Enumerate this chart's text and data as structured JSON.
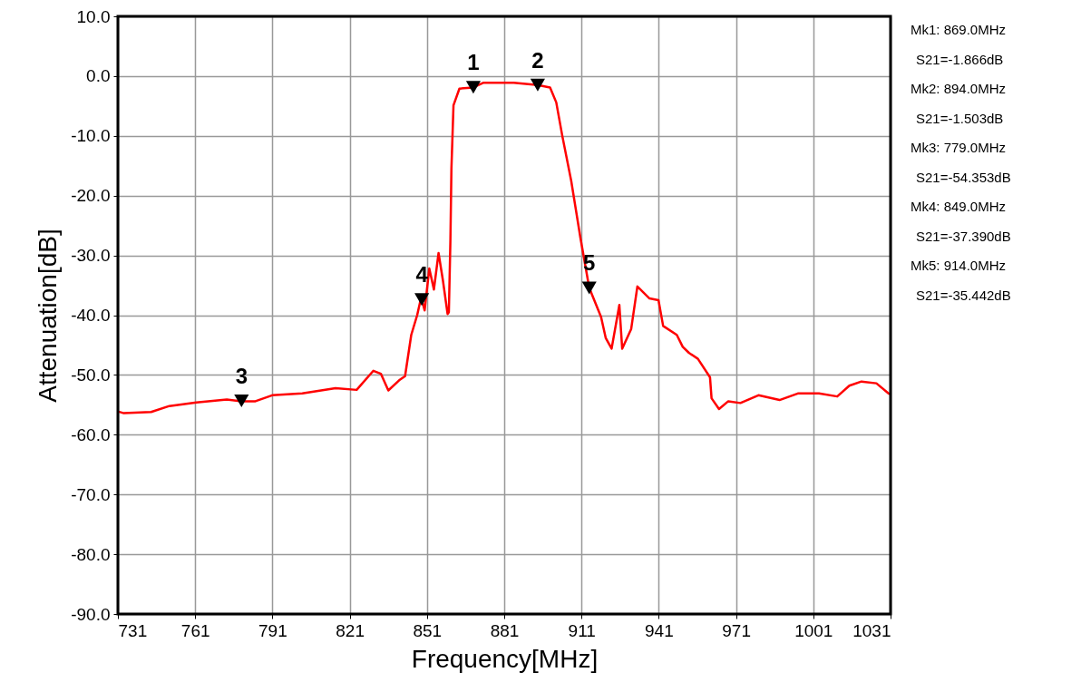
{
  "chart_data": {
    "type": "line",
    "xlabel": "Frequency[MHz]",
    "ylabel": "Attenuation[dB]",
    "x": [
      731,
      733.3,
      743.9,
      751,
      761.5,
      773.3,
      779,
      784.4,
      790.9,
      802.6,
      815.5,
      823.7,
      830.2,
      833.1,
      836,
      840.2,
      842.5,
      844.9,
      847.2,
      848.4,
      849,
      850.1,
      851.9,
      853.7,
      855.5,
      857.2,
      859,
      859.5,
      860.1,
      860.5,
      861.3,
      863.6,
      869,
      873,
      884.7,
      894,
      898.8,
      901.2,
      903.5,
      907,
      910.6,
      914,
      918.6,
      920.4,
      922.7,
      925.7,
      926.8,
      930.3,
      932.7,
      937.4,
      940.9,
      942.7,
      948,
      950.3,
      952.7,
      956.2,
      960.9,
      961.5,
      964.4,
      968,
      972.7,
      979.7,
      987.9,
      995,
      1003.2,
      1010.3,
      1015,
      1019.7,
      1025.5,
      1030.2,
      1031
    ],
    "series": [
      {
        "color": "#ff0000",
        "values": [
          -56.1,
          -56.4,
          -56.2,
          -55.2,
          -54.6,
          -54.1,
          -54.4,
          -54.4,
          -53.4,
          -53.1,
          -52.2,
          -52.5,
          -49.3,
          -49.8,
          -52.6,
          -50.9,
          -50.2,
          -43.3,
          -40,
          -37.7,
          -37.4,
          -39.2,
          -32.2,
          -35.7,
          -29.6,
          -34.2,
          -39.8,
          -39.5,
          -27.6,
          -15.5,
          -4.9,
          -2.1,
          -1.9,
          -1.1,
          -1.1,
          -1.5,
          -1.9,
          -4.4,
          -9.9,
          -17.5,
          -27.1,
          -35.4,
          -40.3,
          -43.8,
          -45.6,
          -38.3,
          -45.6,
          -42.3,
          -35.2,
          -37.2,
          -37.5,
          -41.8,
          -43.3,
          -45.3,
          -46.3,
          -47.3,
          -50.4,
          -53.9,
          -55.7,
          -54.4,
          -54.7,
          -53.4,
          -54.2,
          -53.1,
          -53.1,
          -53.6,
          -51.8,
          -51.1,
          -51.4,
          -53.1,
          -53.2
        ]
      }
    ],
    "xlim": [
      731,
      1031
    ],
    "xticks": [
      731,
      761,
      791,
      821,
      851,
      881,
      911,
      941,
      971,
      1001,
      1031
    ],
    "ylim": [
      -90,
      10
    ],
    "yticks": [
      {
        "value": -90,
        "label": "-90.0"
      },
      {
        "value": -80,
        "label": "-80.0"
      },
      {
        "value": -70,
        "label": "-70.0"
      },
      {
        "value": -60,
        "label": "-60.0"
      },
      {
        "value": -50,
        "label": "-50.0"
      },
      {
        "value": -40,
        "label": "-40.0"
      },
      {
        "value": -30,
        "label": "-30.0"
      },
      {
        "value": -20,
        "label": "-20.0"
      },
      {
        "value": -10,
        "label": "-10.0"
      },
      {
        "value": 0,
        "label": "0.0"
      },
      {
        "value": 10,
        "label": "10.0"
      }
    ],
    "grid": true,
    "marker": "none",
    "line_style": "solid",
    "annotations": [
      {
        "text": "1",
        "x": 869,
        "y": -1.866
      },
      {
        "text": "2",
        "x": 894,
        "y": -1.503
      },
      {
        "text": "3",
        "x": 779,
        "y": -54.353
      },
      {
        "text": "4",
        "x": 849,
        "y": -37.39
      },
      {
        "text": "5",
        "x": 914,
        "y": -35.442
      },
      "Mk1:  869.0MHz",
      "S21=-1.866dB",
      "Mk2:  894.0MHz",
      "S21=-1.503dB",
      "Mk3:  779.0MHz",
      "S21=-54.353dB",
      "Mk4:  849.0MHz",
      "S21=-37.390dB",
      "Mk5:  914.0MHz",
      "S21=-35.442dB"
    ]
  }
}
